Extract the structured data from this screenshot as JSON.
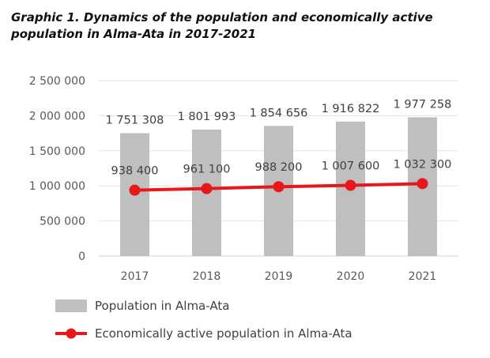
{
  "chart_data": {
    "type": "bar",
    "title": "Graphic 1. Dynamics of the population and economically active population in Alma-Ata in 2017-2021",
    "categories": [
      "2017",
      "2018",
      "2019",
      "2020",
      "2021"
    ],
    "ylim": [
      0,
      2500000
    ],
    "yticks": [
      0,
      500000,
      1000000,
      1500000,
      2000000,
      2500000
    ],
    "ytick_labels": [
      "0",
      "500 000",
      "1 000 000",
      "1 500 000",
      "2 000 000",
      "2 500 000"
    ],
    "grid": true,
    "legend_position": "bottom",
    "series": [
      {
        "name": "Population in Alma-Ata",
        "type": "bar",
        "color": "#bfbfbf",
        "values": [
          1751308,
          1801993,
          1854656,
          1916822,
          1977258
        ],
        "labels": [
          "1 751 308",
          "1 801 993",
          "1 854 656",
          "1 916 822",
          "1 977 258"
        ]
      },
      {
        "name": "Economically active population in Alma-Ata",
        "type": "line",
        "color": "#e8171b",
        "values": [
          938400,
          961100,
          988200,
          1007600,
          1032300
        ],
        "labels": [
          "938 400",
          "961 100",
          "988 200",
          "1 007 600",
          "1 032 300"
        ]
      }
    ]
  }
}
